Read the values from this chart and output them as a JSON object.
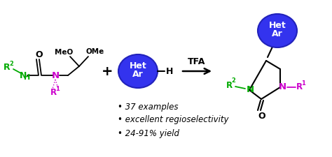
{
  "bg_color": "#ffffff",
  "arrow_color": "#000000",
  "green_color": "#00aa00",
  "purple_color": "#cc00cc",
  "blue_face": "#3333ee",
  "blue_edge": "#2222bb",
  "bullet_points": [
    "37 examples",
    "excellent regioselectivity",
    "24-91% yield"
  ],
  "reagent_label": "TFA",
  "figsize": [
    4.74,
    2.25
  ],
  "dpi": 100
}
